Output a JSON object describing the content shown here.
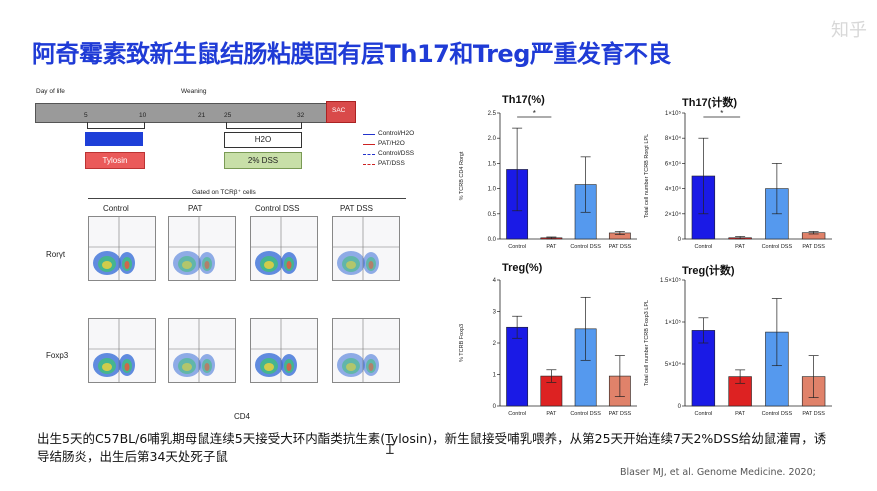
{
  "slide": {
    "title": "阿奇霉素致新生鼠结肠粘膜固有层Th17和Treg严重发育不良",
    "watermark": "知乎",
    "caption": "出生5天的C57BL/6哺乳期母鼠连续5天接受大环内酯类抗生素(Tylosin)，新生鼠接受哺乳喂养，从第25天开始连续7天2%DSS给幼鼠灌胃，诱导结肠炎，出生后第34天处死子鼠",
    "citation": "Blaser MJ, et al.   Genome Medicine.      2020;"
  },
  "timeline": {
    "day_of_life_label": "Day of life",
    "weaning_label": "Weaning",
    "sac_label": "SAC",
    "ticks": [
      "5",
      "10",
      "21",
      "25",
      "32"
    ],
    "tylosin_label": "Tylosin",
    "h2o_label": "H2O",
    "dss_label": "2% DSS",
    "legend": [
      {
        "label": "Control/H2O",
        "color": "#2233cc",
        "dash": false
      },
      {
        "label": "PAT/H2O",
        "color": "#cc2222",
        "dash": false
      },
      {
        "label": "Control/DSS",
        "color": "#2233cc",
        "dash": true
      },
      {
        "label": "PAT/DSS",
        "color": "#cc2222",
        "dash": true
      }
    ]
  },
  "flow": {
    "gate_label": "Gated on TCRβ⁺ cells",
    "columns": [
      "Control",
      "PAT",
      "Control DSS",
      "PAT DSS"
    ],
    "rows": [
      "Rorγt",
      "Foxp3"
    ],
    "x_axis": "CD4"
  },
  "chart_data": [
    {
      "type": "bar",
      "title": "Th17(%)",
      "ylabel": "% TCRB CD4 Rorgt",
      "categories": [
        "Control",
        "PAT",
        "Control DSS",
        "PAT DSS"
      ],
      "values": [
        1.38,
        0.02,
        1.08,
        0.12
      ],
      "errors": [
        0.82,
        0.02,
        0.55,
        0.03
      ],
      "yticks": [
        "0.0",
        "0.5",
        "1.0",
        "1.5",
        "2.0",
        "2.5"
      ],
      "ylim": [
        0,
        2.5
      ],
      "colors": [
        "#1a1ae6",
        "#dd2222",
        "#5599ee",
        "#e0826a"
      ],
      "significance": "*"
    },
    {
      "type": "bar",
      "title": "Th17(计数)",
      "ylabel": "Total cell number TCRB Rorgt LPL",
      "categories": [
        "Control",
        "PAT",
        "Control DSS",
        "PAT DSS"
      ],
      "values": [
        50000,
        1000,
        40000,
        5000
      ],
      "errors": [
        30000,
        1000,
        20000,
        1000
      ],
      "yticks": [
        "0",
        "2×10⁴",
        "4×10⁴",
        "6×10⁴",
        "8×10⁴",
        "1×10⁵"
      ],
      "ylim": [
        0,
        100000
      ],
      "colors": [
        "#1a1ae6",
        "#dd2222",
        "#5599ee",
        "#e0826a"
      ],
      "significance": "*"
    },
    {
      "type": "bar",
      "title": "Treg(%)",
      "ylabel": "% TCRB Foxp3",
      "categories": [
        "Control",
        "PAT",
        "Control DSS",
        "PAT DSS"
      ],
      "values": [
        2.5,
        0.95,
        2.45,
        0.95
      ],
      "errors": [
        0.35,
        0.2,
        1.0,
        0.65
      ],
      "yticks": [
        "0",
        "1",
        "2",
        "3",
        "4"
      ],
      "ylim": [
        0,
        4
      ],
      "colors": [
        "#1a1ae6",
        "#dd2222",
        "#5599ee",
        "#e0826a"
      ],
      "significance": ""
    },
    {
      "type": "bar",
      "title": "Treg(计数)",
      "ylabel": "Total cell number TCRB Foxp3 LPL",
      "categories": [
        "Control",
        "PAT",
        "Control DSS",
        "PAT DSS"
      ],
      "values": [
        90000,
        35000,
        88000,
        35000
      ],
      "errors": [
        15000,
        8000,
        40000,
        25000
      ],
      "yticks": [
        "0",
        "5×10⁴",
        "1×10⁵",
        "1.5×10⁵"
      ],
      "ylim": [
        0,
        150000
      ],
      "colors": [
        "#1a1ae6",
        "#dd2222",
        "#5599ee",
        "#e0826a"
      ],
      "significance": ""
    }
  ]
}
